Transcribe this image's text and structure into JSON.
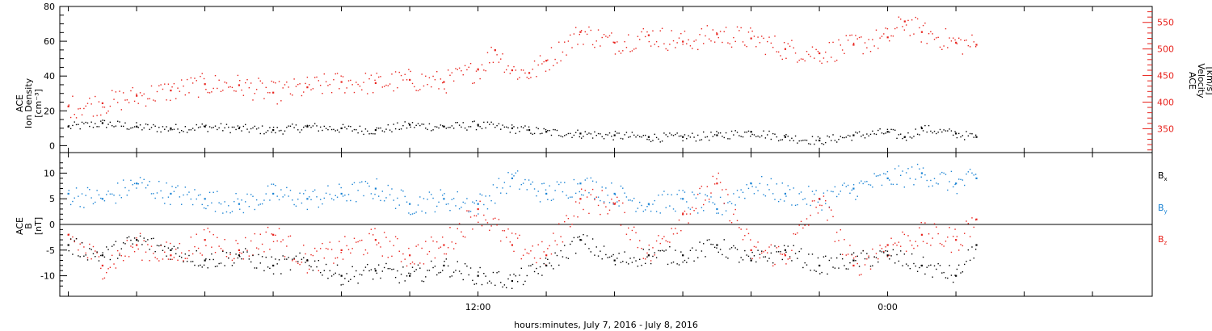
{
  "chart_data": [
    {
      "type": "scatter",
      "panel": "plasma",
      "ylabel_left": [
        "ACE",
        "Ion Density",
        "[cm⁻³]"
      ],
      "ylabel_right": [
        "ACE",
        "Velocity",
        "[km/s]"
      ],
      "ylim_left": [
        -4,
        80
      ],
      "ylim_right": [
        305,
        580
      ],
      "left_ticks": [
        "0",
        "20",
        "40",
        "60",
        "80"
      ],
      "right_ticks": [
        "350",
        "400",
        "450",
        "500",
        "550"
      ],
      "colors": {
        "density": "#000000",
        "velocity": "#e8221c"
      },
      "series": [
        {
          "axis": "left",
          "color": "#000000",
          "x": [
            0,
            1,
            2,
            3,
            4,
            5,
            6,
            7,
            8,
            9,
            10,
            11,
            12,
            13,
            13.5,
            14,
            15,
            16,
            17,
            18,
            19,
            20,
            21,
            22,
            23,
            24,
            24.5,
            25,
            26,
            26.6
          ],
          "values": [
            11,
            13,
            11,
            10,
            11,
            10,
            9,
            11,
            10,
            9,
            12,
            11,
            12,
            10,
            9,
            8,
            7,
            6,
            5,
            5,
            6,
            8,
            5,
            3,
            6,
            8,
            5,
            10,
            7,
            5
          ]
        },
        {
          "axis": "right",
          "color": "#e8221c",
          "x": [
            0,
            1,
            2,
            3,
            4,
            5,
            6,
            7,
            8,
            9,
            10,
            11,
            12,
            12.5,
            13,
            13.5,
            14,
            15,
            16,
            17,
            18,
            19,
            20,
            21,
            22,
            23,
            24,
            24.5,
            25,
            26,
            26.6
          ],
          "values": [
            392,
            398,
            412,
            422,
            434,
            432,
            418,
            428,
            438,
            436,
            442,
            438,
            462,
            498,
            460,
            455,
            478,
            532,
            512,
            526,
            514,
            528,
            520,
            500,
            492,
            508,
            522,
            552,
            532,
            512,
            508
          ]
        }
      ]
    },
    {
      "type": "scatter",
      "panel": "magnetic",
      "ylabel": [
        "ACE",
        "B",
        "[nT]"
      ],
      "ylim": [
        -14,
        14
      ],
      "y_ticks": [
        "-10",
        "-5",
        "0",
        "5",
        "10"
      ],
      "zero_line": true,
      "legend": [
        "Bx",
        "By",
        "Bz"
      ],
      "legend_placement": "right",
      "colors": {
        "Bx": "#000000",
        "By": "#1a83d4",
        "Bz": "#e8221c"
      },
      "series": [
        {
          "name": "Bx",
          "color": "#000000",
          "x": [
            0,
            1,
            2,
            3,
            4,
            5,
            6,
            7,
            8,
            9,
            10,
            11,
            12,
            13,
            14,
            15,
            16,
            17,
            18,
            19,
            20,
            21,
            22,
            23,
            24,
            25,
            26,
            26.6
          ],
          "values": [
            -4,
            -6,
            -3,
            -5,
            -7,
            -6,
            -8,
            -7,
            -10,
            -9,
            -10,
            -8,
            -10,
            -11,
            -8,
            -3,
            -7,
            -6,
            -6,
            -4,
            -7,
            -5,
            -8,
            -7,
            -6,
            -8,
            -10,
            -4
          ]
        },
        {
          "name": "By",
          "color": "#1a83d4",
          "x": [
            0,
            1,
            2,
            3,
            4,
            5,
            6,
            7,
            8,
            9,
            10,
            11,
            12,
            13,
            14,
            15,
            16,
            17,
            18,
            19,
            20,
            21,
            22,
            23,
            24,
            25,
            26,
            26.6
          ],
          "values": [
            6,
            5,
            8,
            6,
            5,
            4,
            6,
            5,
            6,
            7,
            4,
            5,
            4,
            9,
            6,
            8,
            6,
            4,
            5,
            3,
            8,
            6,
            5,
            7,
            9,
            10,
            8,
            9
          ]
        },
        {
          "name": "Bz",
          "color": "#e8221c",
          "x": [
            0,
            1,
            2,
            3,
            4,
            5,
            6,
            7,
            8,
            9,
            10,
            11,
            12,
            13,
            14,
            15,
            16,
            17,
            18,
            19,
            20,
            21,
            22,
            23,
            24,
            25,
            26,
            26.6
          ],
          "values": [
            -2,
            -8,
            -4,
            -6,
            -3,
            -5,
            -2,
            -7,
            -5,
            -3,
            -6,
            -4,
            3,
            -4,
            -6,
            5,
            4,
            -6,
            2,
            8,
            -5,
            -6,
            5,
            -8,
            -4,
            -2,
            -3,
            1
          ]
        }
      ]
    }
  ],
  "x_axis": {
    "label": "hours:minutes, July  7, 2016 - July  8, 2016",
    "range_hours": [
      -0.25,
      31.75
    ],
    "tick_labels": [
      {
        "hour": 12,
        "label": "12:00"
      },
      {
        "hour": 24,
        "label": "0:00"
      }
    ],
    "tick_every_hours": 2
  },
  "legend_labels": {
    "bx": {
      "main": "B",
      "sub": "x"
    },
    "by": {
      "main": "B",
      "sub": "y"
    },
    "bz": {
      "main": "B",
      "sub": "z"
    }
  }
}
